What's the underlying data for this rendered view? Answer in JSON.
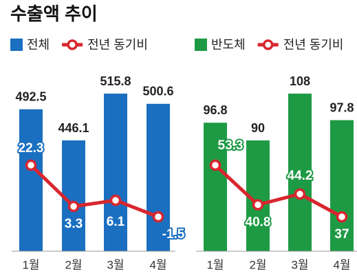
{
  "title": "수출액 추이",
  "chart_data": [
    {
      "type": "bar",
      "categories": [
        "1월",
        "2월",
        "3월",
        "4월"
      ],
      "series": [
        {
          "name": "전체",
          "color": "#1a6fc0",
          "values": [
            492.5,
            446.1,
            515.8,
            500.6
          ]
        },
        {
          "name": "전년 동기비",
          "color": "#d8262e",
          "type": "line",
          "values": [
            22.3,
            3.3,
            6.1,
            -1.5
          ]
        }
      ]
    },
    {
      "type": "bar",
      "categories": [
        "1월",
        "2월",
        "3월",
        "4월"
      ],
      "series": [
        {
          "name": "반도체",
          "color": "#1e9a45",
          "values": [
            96.8,
            90,
            108,
            97.8
          ]
        },
        {
          "name": "전년 동기비",
          "color": "#d8262e",
          "type": "line",
          "values": [
            53.3,
            40.8,
            44.2,
            37
          ]
        }
      ]
    }
  ]
}
